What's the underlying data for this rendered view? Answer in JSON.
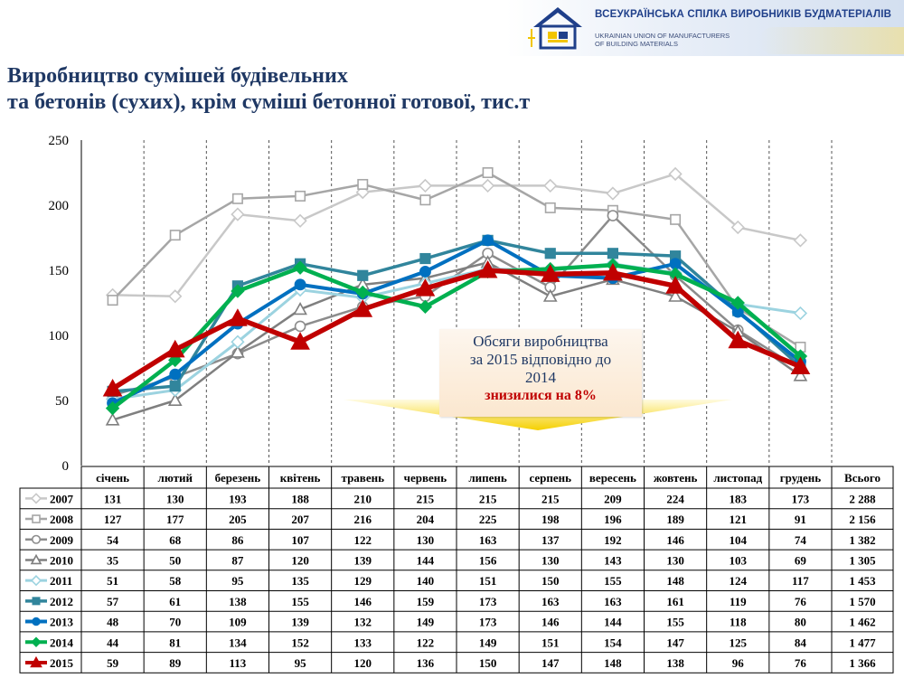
{
  "header": {
    "org_name_uk": "ВСЕУКРАЇНСЬКА СПІЛКА ВИРОБНИКІВ БУДМАТЕРІАЛІВ",
    "org_name_en_line1": "UKRAINIAN UNION OF MANUFACTURERS",
    "org_name_en_line2": "OF BUILDING MATERIALS"
  },
  "title": {
    "line1": "Виробництво сумішей будівельних",
    "line2": "та бетонів (сухих), крім суміші бетонної готової, тис.т"
  },
  "callout": {
    "line1": "Обсяги виробництва",
    "line2": "за 2015 відповідно до",
    "line3": "2014",
    "highlight": "знизилися на 8%"
  },
  "chart_data": {
    "type": "line",
    "ylim": [
      0,
      250
    ],
    "yticks": [
      0,
      50,
      100,
      150,
      200,
      250
    ],
    "grid": "vertical dashed",
    "categories": [
      "січень",
      "лютий",
      "березень",
      "квітень",
      "травень",
      "червень",
      "липень",
      "серпень",
      "вересень",
      "жовтень",
      "листопад",
      "грудень"
    ],
    "total_header": "Всього",
    "series": [
      {
        "name": "2007",
        "values": [
          131,
          130,
          193,
          188,
          210,
          215,
          215,
          215,
          209,
          224,
          183,
          173
        ],
        "total": "2 288",
        "color": "#c8c8c8",
        "marker": "diamond",
        "width": 2.5
      },
      {
        "name": "2008",
        "values": [
          127,
          177,
          205,
          207,
          216,
          204,
          225,
          198,
          196,
          189,
          121,
          91
        ],
        "total": "2 156",
        "color": "#a6a6a6",
        "marker": "square",
        "width": 2.5
      },
      {
        "name": "2009",
        "values": [
          54,
          68,
          86,
          107,
          122,
          130,
          163,
          137,
          192,
          146,
          104,
          74
        ],
        "total": "1 382",
        "color": "#8c8c8c",
        "marker": "circle",
        "width": 2.5
      },
      {
        "name": "2010",
        "values": [
          35,
          50,
          87,
          120,
          139,
          144,
          156,
          130,
          143,
          130,
          103,
          69
        ],
        "total": "1 305",
        "color": "#7f7f7f",
        "marker": "triangle",
        "width": 2.5
      },
      {
        "name": "2011",
        "values": [
          51,
          58,
          95,
          135,
          129,
          140,
          151,
          150,
          155,
          148,
          124,
          117
        ],
        "total": "1 453",
        "color": "#9cd3e0",
        "marker": "diamond",
        "width": 3
      },
      {
        "name": "2012",
        "values": [
          57,
          61,
          138,
          155,
          146,
          159,
          173,
          163,
          163,
          161,
          119,
          76
        ],
        "total": "1 570",
        "color": "#31859c",
        "marker": "square",
        "width": 3.5
      },
      {
        "name": "2013",
        "values": [
          48,
          70,
          109,
          139,
          132,
          149,
          173,
          146,
          144,
          155,
          118,
          80
        ],
        "total": "1 462",
        "color": "#0070c0",
        "marker": "circle",
        "width": 4
      },
      {
        "name": "2014",
        "values": [
          44,
          81,
          134,
          152,
          133,
          122,
          149,
          151,
          154,
          147,
          125,
          84
        ],
        "total": "1 477",
        "color": "#00b050",
        "marker": "diamond",
        "width": 4.5
      },
      {
        "name": "2015",
        "values": [
          59,
          89,
          113,
          95,
          120,
          136,
          150,
          147,
          148,
          138,
          96,
          76
        ],
        "total": "1 366",
        "color": "#c00000",
        "marker": "triangle",
        "width": 5.5
      }
    ]
  }
}
